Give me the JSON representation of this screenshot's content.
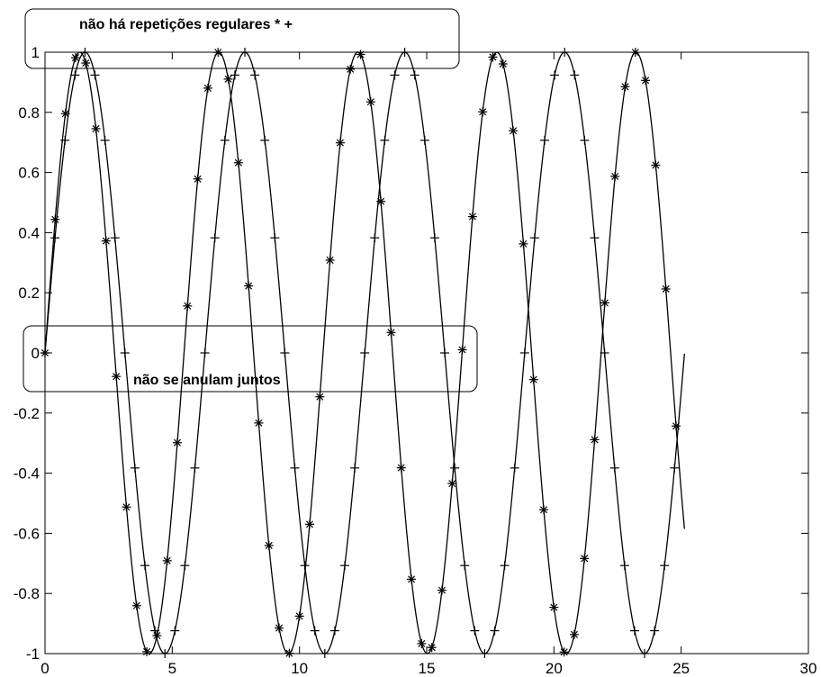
{
  "chart_data": {
    "type": "line",
    "title": "",
    "xlabel": "",
    "ylabel": "",
    "xlim": [
      0,
      30
    ],
    "ylim": [
      -1,
      1
    ],
    "xticks": [
      0,
      5,
      10,
      15,
      20,
      25,
      30
    ],
    "xtick_labels": [
      "0",
      "5",
      "10",
      "15",
      "20",
      "25",
      "30"
    ],
    "yticks": [
      -1,
      -0.8,
      -0.6,
      -0.4,
      -0.2,
      0,
      0.2,
      0.4,
      0.6,
      0.8,
      1
    ],
    "ytick_labels": [
      "-1",
      "-0.8",
      "-0.6",
      "-0.4",
      "-0.2",
      "0",
      "0.2",
      "0.4",
      "0.6",
      "0.8",
      "1"
    ],
    "grid": false,
    "series": [
      {
        "function": "sin(x)",
        "marker": "+",
        "x_start": 0,
        "x_end": 25.13,
        "sample_step": 0.3927,
        "color": "#000000"
      },
      {
        "function": "sin(1.15*x)",
        "marker": "*",
        "x_start": 0,
        "x_end": 25.13,
        "sample_step": 0.4,
        "color": "#000000"
      }
    ],
    "annotations": [
      {
        "text": "não há repetições regulares * +"
      },
      {
        "text": "não se anulam juntos"
      }
    ]
  }
}
